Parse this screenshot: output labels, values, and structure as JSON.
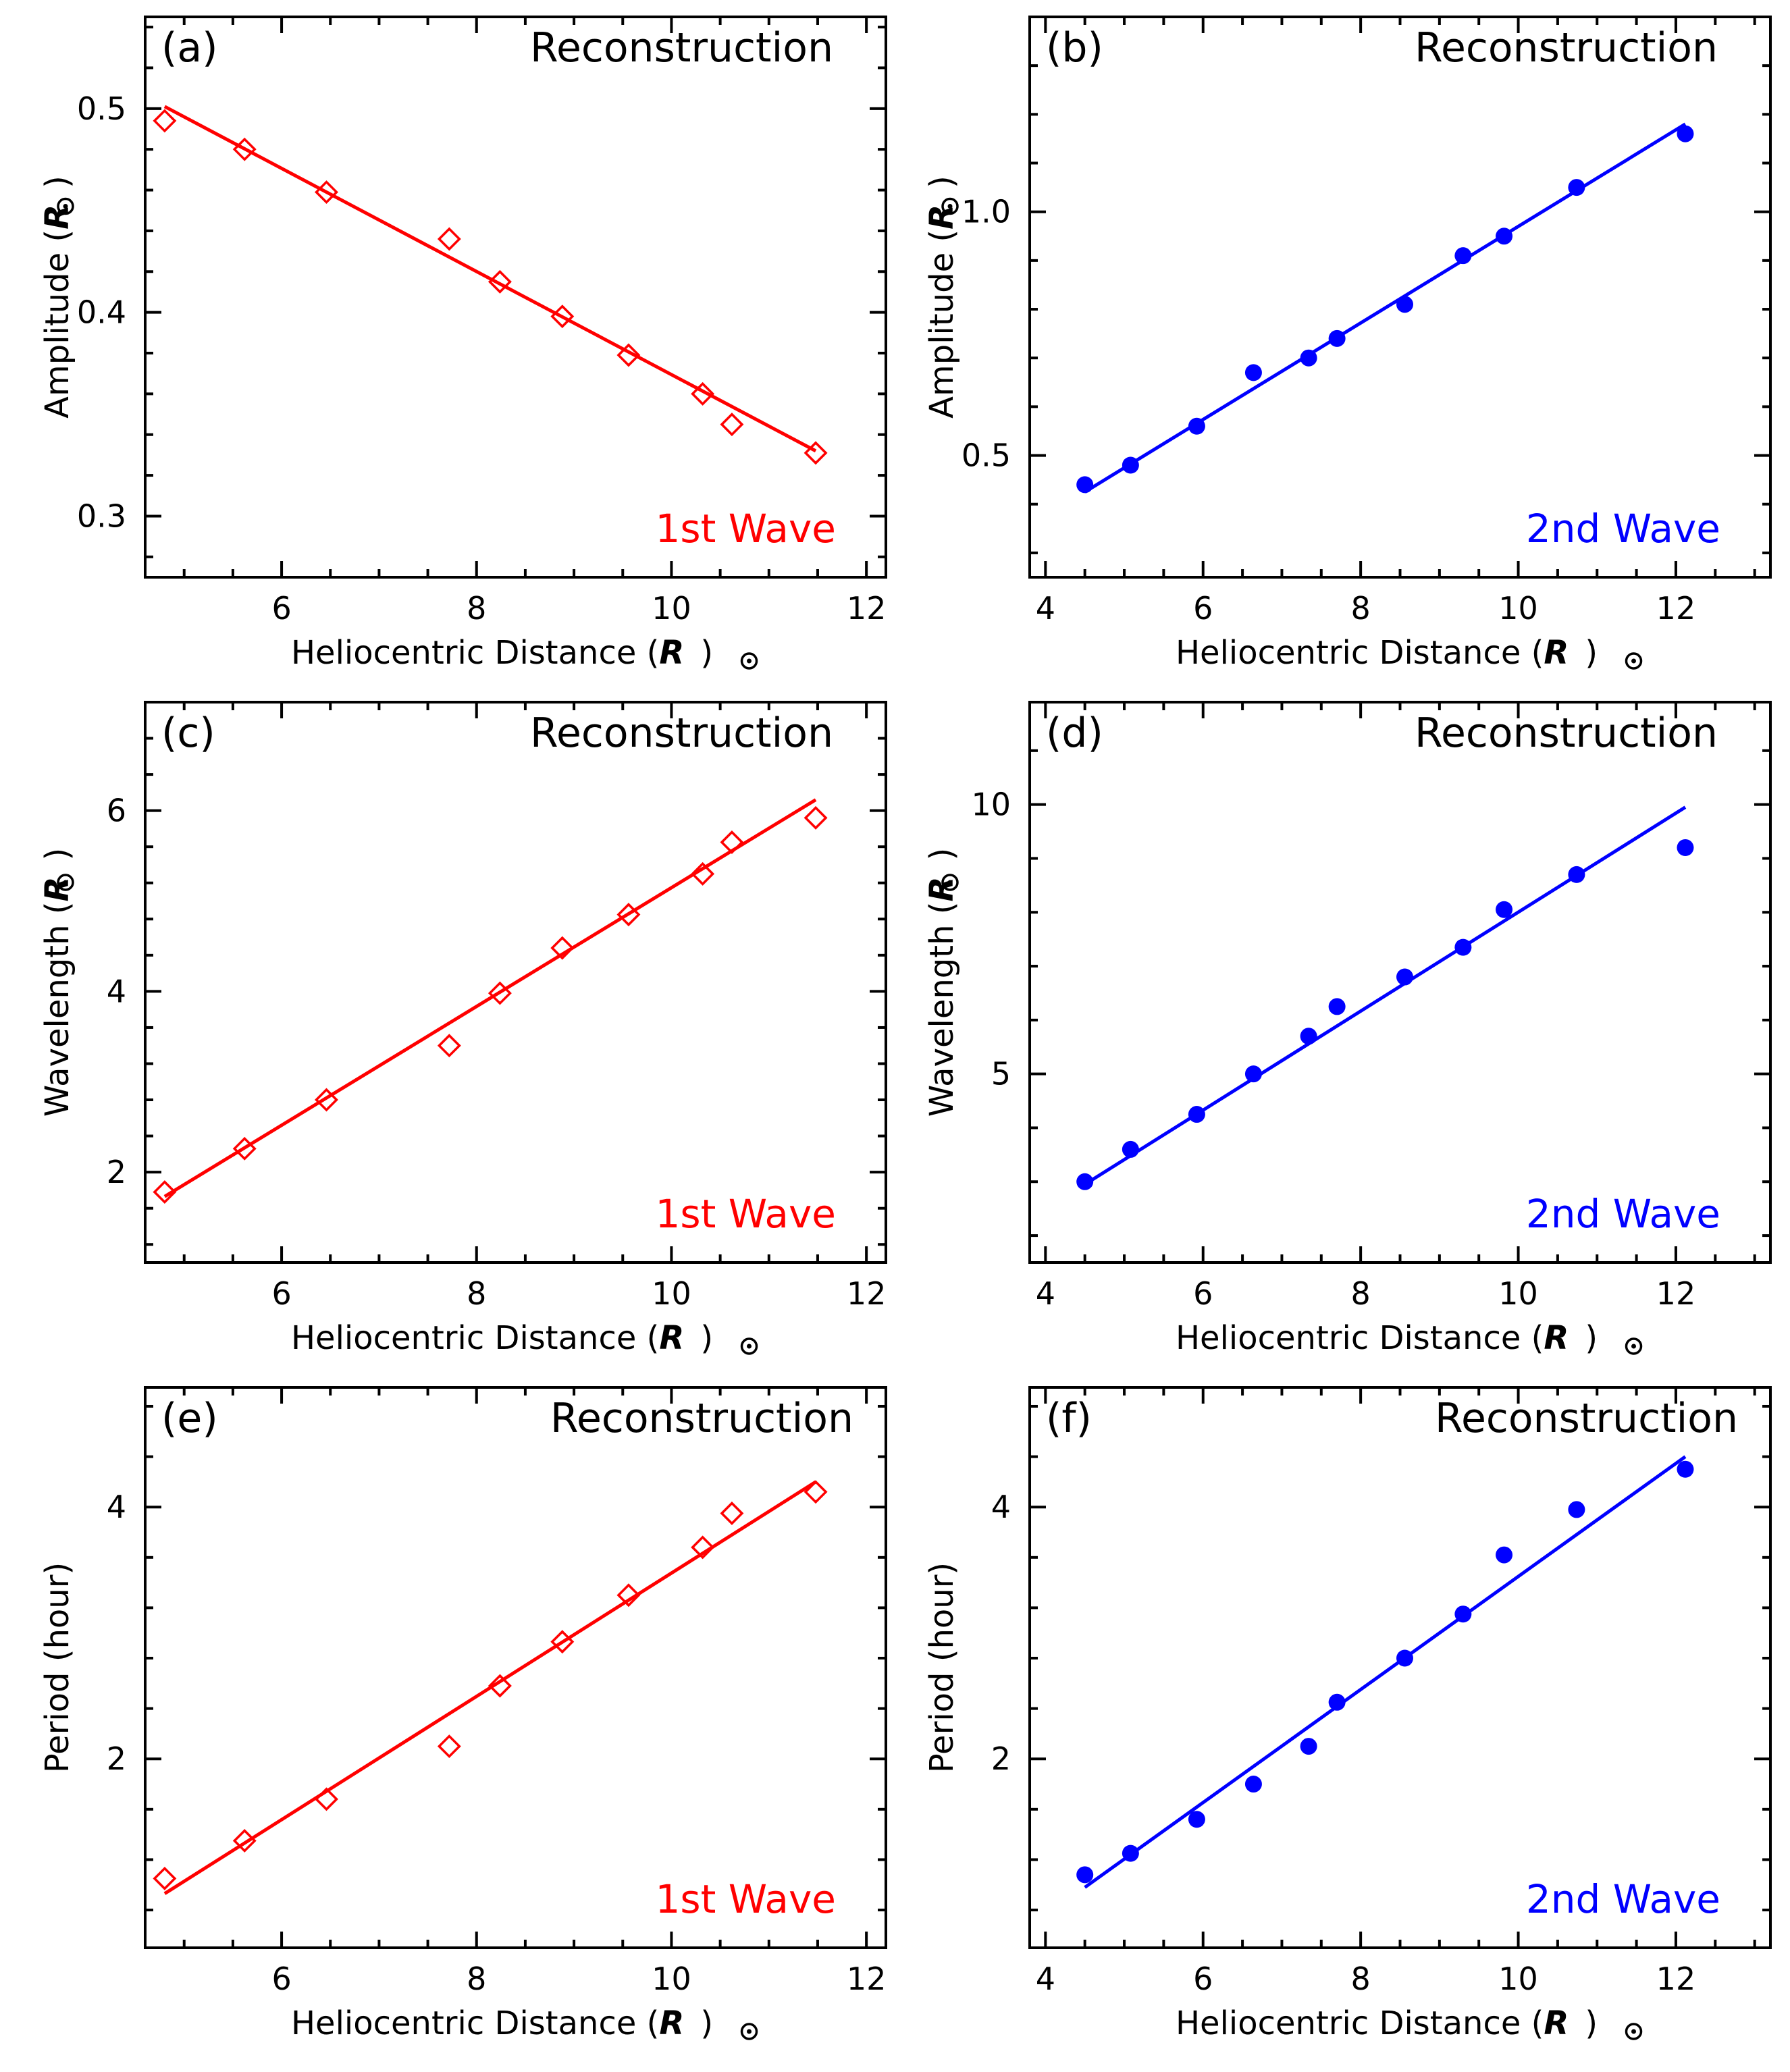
{
  "figure": {
    "colors": {
      "first_wave": "#ff0000",
      "second_wave": "#0000ff",
      "axes": "#000000"
    }
  },
  "chart_data": [
    {
      "id": "a",
      "type": "scatter",
      "panel_label": "(a)",
      "title": "Reconstruction",
      "annotation": "1st Wave",
      "color": "#ff0000",
      "marker": "open-diamond",
      "xlabel": "Heliocentric Distance",
      "xlabel_unit": "R",
      "ylabel": "Amplitude",
      "ylabel_unit": "R",
      "xlim": [
        4.6,
        12.2
      ],
      "ylim": [
        0.27,
        0.545
      ],
      "xticks": [
        6,
        8,
        10,
        12
      ],
      "yticks": [
        0.3,
        0.4,
        0.5
      ],
      "ytick_labels": [
        "0.3",
        "0.4",
        "0.5"
      ],
      "x": [
        4.8,
        5.62,
        6.46,
        7.72,
        8.24,
        8.88,
        9.56,
        10.32,
        10.62,
        11.48
      ],
      "y": [
        0.494,
        0.48,
        0.459,
        0.436,
        0.415,
        0.398,
        0.379,
        0.36,
        0.345,
        0.331
      ],
      "fit": {
        "x": [
          4.8,
          11.48
        ],
        "y": [
          0.501,
          0.332
        ]
      }
    },
    {
      "id": "b",
      "type": "scatter",
      "panel_label": "(b)",
      "title": "Reconstruction",
      "annotation": "2nd Wave",
      "color": "#0000ff",
      "marker": "filled-circle",
      "xlabel": "Heliocentric Distance",
      "xlabel_unit": "R",
      "ylabel": "Amplitude",
      "ylabel_unit": "R",
      "xlim": [
        3.8,
        13.2
      ],
      "ylim": [
        0.25,
        1.4
      ],
      "xticks": [
        4,
        6,
        8,
        10,
        12
      ],
      "yticks": [
        0.5,
        1.0
      ],
      "ytick_labels": [
        "0.5",
        "1.0"
      ],
      "x": [
        4.5,
        5.08,
        5.92,
        6.64,
        7.34,
        7.7,
        8.56,
        9.3,
        9.82,
        10.74,
        12.12
      ],
      "y": [
        0.44,
        0.48,
        0.56,
        0.67,
        0.7,
        0.74,
        0.81,
        0.91,
        0.95,
        1.05,
        1.16
      ],
      "fit": {
        "x": [
          4.5,
          12.12
        ],
        "y": [
          0.425,
          1.18
        ]
      }
    },
    {
      "id": "c",
      "type": "scatter",
      "panel_label": "(c)",
      "title": "Reconstruction",
      "annotation": "1st Wave",
      "color": "#ff0000",
      "marker": "open-diamond",
      "xlabel": "Heliocentric Distance",
      "xlabel_unit": "R",
      "ylabel": "Wavelength",
      "ylabel_unit": "R",
      "xlim": [
        4.6,
        12.2
      ],
      "ylim": [
        1.0,
        7.2
      ],
      "xticks": [
        6,
        8,
        10,
        12
      ],
      "yticks": [
        2,
        4,
        6
      ],
      "ytick_labels": [
        "2",
        "4",
        "6"
      ],
      "x": [
        4.8,
        5.62,
        6.46,
        7.72,
        8.24,
        8.88,
        9.56,
        10.32,
        10.62,
        11.48
      ],
      "y": [
        1.78,
        2.26,
        2.8,
        3.4,
        3.98,
        4.48,
        4.85,
        5.3,
        5.65,
        5.92
      ],
      "fit": {
        "x": [
          4.8,
          11.48
        ],
        "y": [
          1.73,
          6.12
        ]
      }
    },
    {
      "id": "d",
      "type": "scatter",
      "panel_label": "(d)",
      "title": "Reconstruction",
      "annotation": "2nd Wave",
      "color": "#0000ff",
      "marker": "filled-circle",
      "xlabel": "Heliocentric Distance",
      "xlabel_unit": "R",
      "ylabel": "Wavelength",
      "ylabel_unit": "R",
      "xlim": [
        3.8,
        13.2
      ],
      "ylim": [
        1.5,
        11.9
      ],
      "xticks": [
        4,
        6,
        8,
        10,
        12
      ],
      "yticks": [
        5,
        10
      ],
      "ytick_labels": [
        "5",
        "10"
      ],
      "x": [
        4.5,
        5.08,
        5.92,
        6.64,
        7.34,
        7.7,
        8.56,
        9.3,
        9.82,
        10.74,
        12.12
      ],
      "y": [
        3.0,
        3.6,
        4.25,
        5.0,
        5.7,
        6.25,
        6.8,
        7.35,
        8.05,
        8.7,
        9.2
      ],
      "fit": {
        "x": [
          4.5,
          12.12
        ],
        "y": [
          2.95,
          9.95
        ]
      }
    },
    {
      "id": "e",
      "type": "scatter",
      "panel_label": "(e)",
      "title": "Reconstruction",
      "annotation": "1st Wave",
      "color": "#ff0000",
      "marker": "open-diamond",
      "xlabel": "Heliocentric Distance",
      "xlabel_unit": "R",
      "ylabel": "Period (hour)",
      "ylabel_unit": "",
      "xlim": [
        4.6,
        12.2
      ],
      "ylim": [
        0.5,
        4.95
      ],
      "xticks": [
        6,
        8,
        10,
        12
      ],
      "yticks": [
        2,
        4
      ],
      "ytick_labels": [
        "2",
        "4"
      ],
      "x": [
        4.8,
        5.62,
        6.46,
        7.72,
        8.24,
        8.88,
        9.56,
        10.32,
        10.62,
        11.48
      ],
      "y": [
        1.05,
        1.35,
        1.68,
        2.1,
        2.58,
        2.93,
        3.3,
        3.68,
        3.95,
        4.12
      ],
      "fit": {
        "x": [
          4.8,
          11.48
        ],
        "y": [
          0.93,
          4.2
        ]
      }
    },
    {
      "id": "f",
      "type": "scatter",
      "panel_label": "(f)",
      "title": "Reconstruction",
      "annotation": "2nd Wave",
      "color": "#0000ff",
      "marker": "filled-circle",
      "xlabel": "Heliocentric Distance",
      "xlabel_unit": "R",
      "ylabel": "Period (hour)",
      "ylabel_unit": "",
      "xlim": [
        3.8,
        13.2
      ],
      "ylim": [
        0.5,
        4.95
      ],
      "xticks": [
        4,
        6,
        8,
        10,
        12
      ],
      "yticks": [
        2,
        4
      ],
      "ytick_labels": [
        "2",
        "4"
      ],
      "x": [
        4.5,
        5.08,
        5.92,
        6.64,
        7.34,
        7.7,
        8.56,
        9.3,
        9.82,
        10.74,
        12.12
      ],
      "y": [
        1.08,
        1.25,
        1.52,
        1.8,
        2.1,
        2.45,
        2.8,
        3.15,
        3.62,
        3.98,
        4.3
      ],
      "fit": {
        "x": [
          4.5,
          12.12
        ],
        "y": [
          0.98,
          4.4
        ]
      }
    }
  ]
}
